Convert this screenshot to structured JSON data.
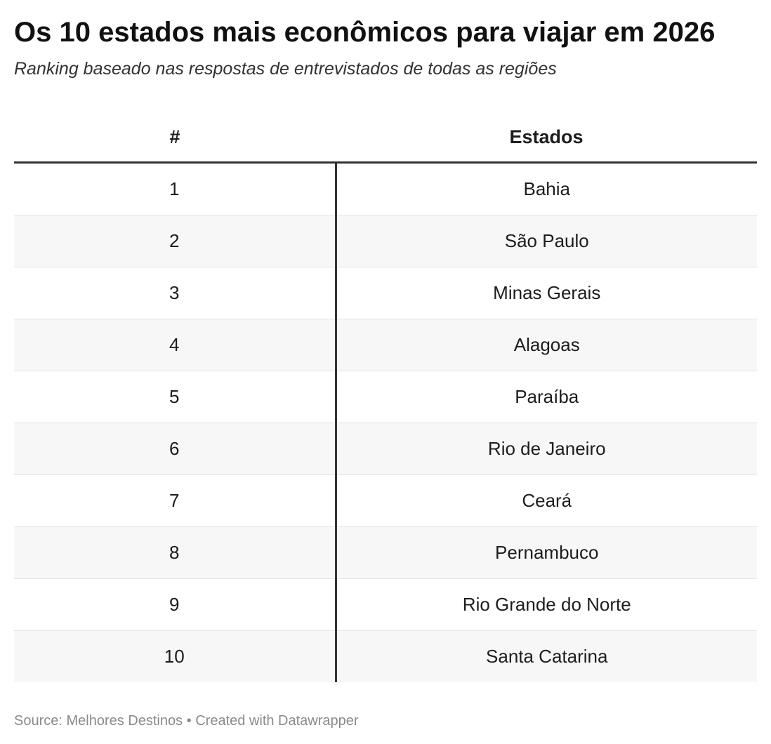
{
  "chart_data": {
    "type": "table",
    "title": "Os 10 estados mais econômicos para viajar em 2026",
    "subtitle": "Ranking baseado nas respostas de entrevistados de todas as regiões",
    "columns": [
      "#",
      "Estados"
    ],
    "rows": [
      {
        "rank": "1",
        "state": "Bahia"
      },
      {
        "rank": "2",
        "state": "São Paulo"
      },
      {
        "rank": "3",
        "state": "Minas Gerais"
      },
      {
        "rank": "4",
        "state": "Alagoas"
      },
      {
        "rank": "5",
        "state": "Paraíba"
      },
      {
        "rank": "6",
        "state": "Rio de Janeiro"
      },
      {
        "rank": "7",
        "state": "Ceará"
      },
      {
        "rank": "8",
        "state": "Pernambuco"
      },
      {
        "rank": "9",
        "state": "Rio Grande do Norte"
      },
      {
        "rank": "10",
        "state": "Santa Catarina"
      }
    ]
  },
  "footer": {
    "text": "Source: Melhores Destinos • Created with Datawrapper"
  }
}
